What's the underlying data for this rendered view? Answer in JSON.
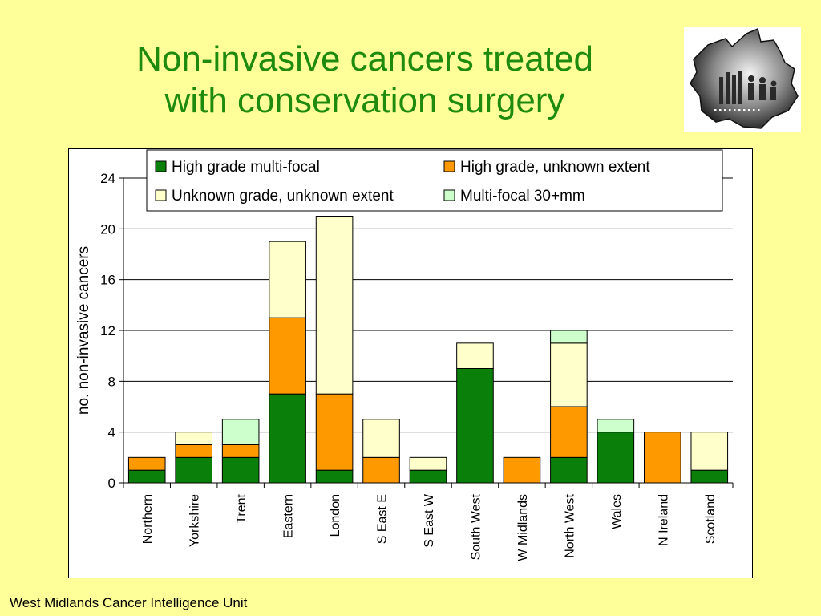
{
  "slide": {
    "title_line1": "Non-invasive cancers treated",
    "title_line2": "with conservation surgery",
    "footer": "West Midlands Cancer Intelligence Unit"
  },
  "colors": {
    "background": "#ffff99",
    "title": "#1e8b0e",
    "high_grade_multifocal": "#0a7f0a",
    "high_grade_unknown_extent": "#ff9900",
    "unknown_grade_unknown_extent": "#ffffcc",
    "multifocal_30mm": "#ccffcc"
  },
  "logo": {
    "icon": "west-midlands-map-logo-icon"
  },
  "chart_data": {
    "type": "bar",
    "stacked": true,
    "title": "",
    "xlabel": "",
    "ylabel": "no. non-invasive cancers",
    "ylim": [
      0,
      24
    ],
    "yticks": [
      0,
      4,
      8,
      12,
      16,
      20,
      24
    ],
    "grid": true,
    "legend_position": "top",
    "categories": [
      "Northern",
      "Yorkshire",
      "Trent",
      "Eastern",
      "London",
      "S East E",
      "S East W",
      "South West",
      "W Midlands",
      "North West",
      "Wales",
      "N Ireland",
      "Scotland"
    ],
    "series": [
      {
        "name": "High grade multi-focal",
        "color": "#0a7f0a",
        "values": [
          1,
          2,
          2,
          7,
          1,
          0,
          1,
          9,
          0,
          2,
          4,
          0,
          1
        ]
      },
      {
        "name": "High grade, unknown extent",
        "color": "#ff9900",
        "values": [
          1,
          1,
          1,
          6,
          6,
          2,
          0,
          0,
          2,
          4,
          0,
          4,
          0
        ]
      },
      {
        "name": "Unknown grade, unknown extent",
        "color": "#ffffcc",
        "values": [
          0,
          1,
          0,
          6,
          14,
          3,
          1,
          2,
          0,
          5,
          0,
          0,
          3
        ]
      },
      {
        "name": "Multi-focal 30+mm",
        "color": "#ccffcc",
        "values": [
          0,
          0,
          2,
          0,
          0,
          0,
          0,
          0,
          0,
          1,
          1,
          0,
          0
        ]
      }
    ]
  }
}
